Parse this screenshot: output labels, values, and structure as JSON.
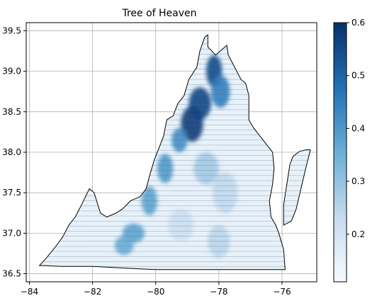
{
  "chart_data": {
    "type": "heatmap",
    "title": "Tree of Heaven",
    "xlabel": "",
    "ylabel": "",
    "xlim": [
      -84.1,
      -74.9
    ],
    "ylim": [
      36.4,
      39.6
    ],
    "x_ticks": [
      -84,
      -82,
      -80,
      -78,
      -76
    ],
    "x_tick_labels": [
      "−84",
      "−82",
      "−80",
      "−78",
      "−76"
    ],
    "y_ticks": [
      36.5,
      37.0,
      37.5,
      38.0,
      38.5,
      39.0,
      39.5
    ],
    "y_tick_labels": [
      "36.5",
      "37.0",
      "37.5",
      "38.0",
      "38.5",
      "39.0",
      "39.5"
    ],
    "grid": true,
    "colormap": "Blues",
    "colorbar": {
      "range": [
        0.11,
        0.6
      ],
      "ticks": [
        0.2,
        0.3,
        0.4,
        0.5,
        0.6
      ],
      "tick_labels": [
        "0.2",
        "0.3",
        "0.4",
        "0.5",
        "0.6"
      ]
    },
    "colors": {
      "low": "#f7fbff",
      "mid": "#6baed6",
      "high": "#08306b"
    },
    "region_outline": [
      [
        -83.68,
        36.6
      ],
      [
        -83.5,
        36.6
      ],
      [
        -83.0,
        36.59
      ],
      [
        -82.5,
        36.59
      ],
      [
        -82.0,
        36.59
      ],
      [
        -81.5,
        36.58
      ],
      [
        -81.0,
        36.57
      ],
      [
        -80.5,
        36.56
      ],
      [
        -80.0,
        36.55
      ],
      [
        -79.5,
        36.55
      ],
      [
        -79.0,
        36.55
      ],
      [
        -78.5,
        36.55
      ],
      [
        -78.0,
        36.55
      ],
      [
        -77.5,
        36.55
      ],
      [
        -77.0,
        36.55
      ],
      [
        -76.5,
        36.55
      ],
      [
        -76.05,
        36.55
      ],
      [
        -75.9,
        36.55
      ],
      [
        -75.95,
        36.8
      ],
      [
        -76.1,
        37.0
      ],
      [
        -76.2,
        37.1
      ],
      [
        -76.35,
        37.2
      ],
      [
        -76.4,
        37.4
      ],
      [
        -76.3,
        37.6
      ],
      [
        -76.25,
        37.8
      ],
      [
        -76.3,
        38.0
      ],
      [
        -76.6,
        38.15
      ],
      [
        -76.9,
        38.3
      ],
      [
        -77.05,
        38.4
      ],
      [
        -77.05,
        38.7
      ],
      [
        -77.15,
        38.85
      ],
      [
        -77.3,
        38.9
      ],
      [
        -77.5,
        39.05
      ],
      [
        -77.7,
        39.2
      ],
      [
        -77.75,
        39.32
      ],
      [
        -78.1,
        39.2
      ],
      [
        -78.35,
        39.3
      ],
      [
        -78.35,
        39.45
      ],
      [
        -78.45,
        39.42
      ],
      [
        -78.6,
        39.25
      ],
      [
        -78.7,
        39.05
      ],
      [
        -78.95,
        38.9
      ],
      [
        -79.1,
        38.7
      ],
      [
        -79.3,
        38.6
      ],
      [
        -79.45,
        38.45
      ],
      [
        -79.65,
        38.4
      ],
      [
        -79.75,
        38.2
      ],
      [
        -79.9,
        38.05
      ],
      [
        -80.05,
        37.9
      ],
      [
        -80.2,
        37.7
      ],
      [
        -80.3,
        37.55
      ],
      [
        -80.5,
        37.45
      ],
      [
        -80.8,
        37.4
      ],
      [
        -81.05,
        37.3
      ],
      [
        -81.25,
        37.25
      ],
      [
        -81.55,
        37.2
      ],
      [
        -81.75,
        37.25
      ],
      [
        -81.95,
        37.5
      ],
      [
        -82.1,
        37.55
      ],
      [
        -82.35,
        37.35
      ],
      [
        -82.55,
        37.2
      ],
      [
        -82.75,
        37.1
      ],
      [
        -82.95,
        36.95
      ],
      [
        -83.2,
        36.82
      ],
      [
        -83.45,
        36.7
      ],
      [
        -83.68,
        36.6
      ]
    ],
    "eastern_shore_outline": [
      [
        -75.25,
        38.03
      ],
      [
        -75.1,
        38.03
      ],
      [
        -75.25,
        37.8
      ],
      [
        -75.4,
        37.55
      ],
      [
        -75.55,
        37.3
      ],
      [
        -75.7,
        37.15
      ],
      [
        -75.95,
        37.1
      ],
      [
        -75.95,
        37.35
      ],
      [
        -75.85,
        37.6
      ],
      [
        -75.75,
        37.85
      ],
      [
        -75.65,
        37.95
      ],
      [
        -75.45,
        38.01
      ],
      [
        -75.25,
        38.03
      ]
    ],
    "hotspots": [
      {
        "x": -78.85,
        "y": 38.35,
        "value": 0.58,
        "rx": 0.35,
        "ry": 0.22
      },
      {
        "x": -78.6,
        "y": 38.6,
        "value": 0.56,
        "rx": 0.35,
        "ry": 0.2
      },
      {
        "x": -78.15,
        "y": 39.0,
        "value": 0.55,
        "rx": 0.25,
        "ry": 0.2
      },
      {
        "x": -77.95,
        "y": 38.75,
        "value": 0.45,
        "rx": 0.3,
        "ry": 0.2
      },
      {
        "x": -79.25,
        "y": 38.15,
        "value": 0.42,
        "rx": 0.25,
        "ry": 0.15
      },
      {
        "x": -79.7,
        "y": 37.8,
        "value": 0.4,
        "rx": 0.25,
        "ry": 0.18
      },
      {
        "x": -80.2,
        "y": 37.4,
        "value": 0.38,
        "rx": 0.25,
        "ry": 0.18
      },
      {
        "x": -80.7,
        "y": 37.0,
        "value": 0.38,
        "rx": 0.35,
        "ry": 0.12
      },
      {
        "x": -81.0,
        "y": 36.85,
        "value": 0.36,
        "rx": 0.3,
        "ry": 0.12
      },
      {
        "x": -78.4,
        "y": 37.8,
        "value": 0.28,
        "rx": 0.4,
        "ry": 0.2
      },
      {
        "x": -77.8,
        "y": 37.5,
        "value": 0.24,
        "rx": 0.4,
        "ry": 0.25
      },
      {
        "x": -78.0,
        "y": 36.9,
        "value": 0.25,
        "rx": 0.35,
        "ry": 0.2
      },
      {
        "x": -79.2,
        "y": 37.1,
        "value": 0.22,
        "rx": 0.4,
        "ry": 0.2
      }
    ]
  }
}
